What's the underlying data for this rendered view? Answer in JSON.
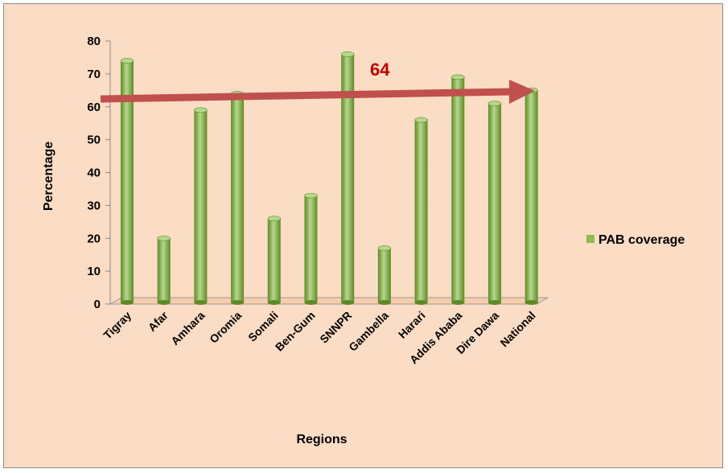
{
  "chart_data": {
    "type": "bar",
    "categories": [
      "Tigray",
      "Afar",
      "Amhara",
      "Oromia",
      "Somali",
      "Ben-Gum",
      "SNNPR",
      "Gambella",
      "Harari",
      "Addis Ababa",
      "Dire Dawa",
      "National"
    ],
    "series": [
      {
        "name": "PAB coverage",
        "values": [
          74,
          20,
          59,
          64,
          26,
          33,
          76,
          17,
          56,
          69,
          61,
          65
        ]
      }
    ],
    "xlabel": "Regions",
    "ylabel": "Percentage",
    "ylim": [
      0,
      80
    ],
    "yticks": [
      "0",
      "10",
      "20",
      "30",
      "40",
      "50",
      "60",
      "70",
      "80"
    ],
    "annotation": "64",
    "legend_position": "right",
    "grid": false,
    "colors": {
      "bar": "#8dbd4a",
      "bar_dark": "#5e8a26",
      "bar_light": "#b5d98a",
      "arrow": "#c0504d",
      "background": "#fbdcc4"
    }
  }
}
